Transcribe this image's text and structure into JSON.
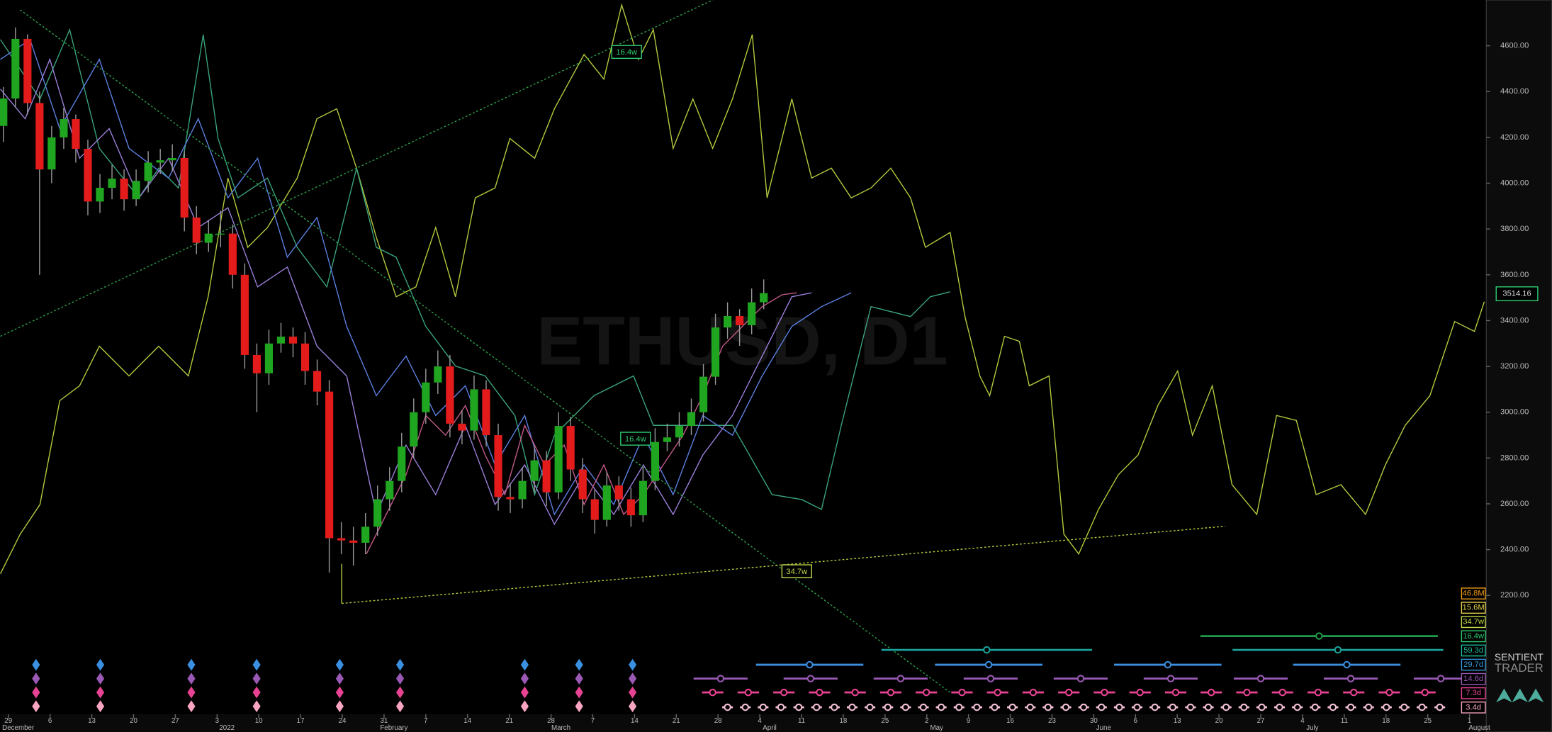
{
  "watermark": "ETHUSD, D1",
  "ylim": [
    1690,
    4800
  ],
  "yticks": [
    {
      "value": 2200,
      "label": "2200.00"
    },
    {
      "value": 2400,
      "label": "2400.00"
    },
    {
      "value": 2600,
      "label": "2600.00"
    },
    {
      "value": 2800,
      "label": "2800.00"
    },
    {
      "value": 3000,
      "label": "3000.00"
    },
    {
      "value": 3200,
      "label": "3200.00"
    },
    {
      "value": 3400,
      "label": "3400.00"
    },
    {
      "value": 3600,
      "label": "3600.00"
    },
    {
      "value": 3800,
      "label": "3800.00"
    },
    {
      "value": 4000,
      "label": "4000.00"
    },
    {
      "value": 4200,
      "label": "4200.00"
    },
    {
      "value": 4400,
      "label": "4400.00"
    },
    {
      "value": 4600,
      "label": "4600.00"
    }
  ],
  "last_price": 3514.16,
  "xticks": [
    {
      "day": "29",
      "month": "December"
    },
    {
      "day": "6"
    },
    {
      "day": "13"
    },
    {
      "day": "20"
    },
    {
      "day": "27"
    },
    {
      "day": "3",
      "month": "2022"
    },
    {
      "day": "10"
    },
    {
      "day": "17"
    },
    {
      "day": "24"
    },
    {
      "day": "31",
      "month": "February"
    },
    {
      "day": "7"
    },
    {
      "day": "14"
    },
    {
      "day": "21"
    },
    {
      "day": "28",
      "month": "March"
    },
    {
      "day": "7"
    },
    {
      "day": "14"
    },
    {
      "day": "21"
    },
    {
      "day": "28"
    },
    {
      "day": "4",
      "month": "April"
    },
    {
      "day": "11"
    },
    {
      "day": "18"
    },
    {
      "day": "25"
    },
    {
      "day": "2",
      "month": "May"
    },
    {
      "day": "9"
    },
    {
      "day": "16"
    },
    {
      "day": "23"
    },
    {
      "day": "30",
      "month": "June"
    },
    {
      "day": "6"
    },
    {
      "day": "13"
    },
    {
      "day": "20"
    },
    {
      "day": "27"
    },
    {
      "day": "4",
      "month": "July"
    },
    {
      "day": "11"
    },
    {
      "day": "18"
    },
    {
      "day": "25"
    },
    {
      "day": "1",
      "month": "August"
    }
  ],
  "annotations": [
    "16.4w",
    "16.4w",
    "34.7w"
  ],
  "cycle_labels": [
    {
      "label": "46.8M",
      "color": "#f39c12"
    },
    {
      "label": "15.6M",
      "color": "#e8d44d"
    },
    {
      "label": "34.7w",
      "color": "#c4d94a"
    },
    {
      "label": "16.4w",
      "color": "#2ecc71"
    },
    {
      "label": "59.3d",
      "color": "#1abc9c"
    },
    {
      "label": "29.7d",
      "color": "#3498db"
    },
    {
      "label": "14.6d",
      "color": "#9b59b6"
    },
    {
      "label": "7.3d",
      "color": "#e84393"
    },
    {
      "label": "3.4d",
      "color": "#f8a5c2"
    }
  ],
  "brand": [
    "SENTIENT",
    "TRADER"
  ],
  "up_color": "#1fa51f",
  "down_color": "#e41b1b",
  "candles": [
    [
      4250,
      4420,
      4180,
      4370
    ],
    [
      4370,
      4680,
      4330,
      4630
    ],
    [
      4630,
      4650,
      4300,
      4350
    ],
    [
      4350,
      4400,
      3600,
      4060
    ],
    [
      4060,
      4250,
      4000,
      4200
    ],
    [
      4200,
      4330,
      4150,
      4280
    ],
    [
      4280,
      4300,
      4090,
      4150
    ],
    [
      4150,
      4190,
      3860,
      3920
    ],
    [
      3920,
      4040,
      3870,
      3980
    ],
    [
      3980,
      4080,
      3930,
      4020
    ],
    [
      4020,
      4060,
      3880,
      3930
    ],
    [
      3930,
      4060,
      3900,
      4010
    ],
    [
      4010,
      4140,
      3960,
      4090
    ],
    [
      4090,
      4150,
      4040,
      4100
    ],
    [
      4100,
      4170,
      4050,
      4110
    ],
    [
      4110,
      4140,
      3790,
      3850
    ],
    [
      3850,
      3900,
      3690,
      3740
    ],
    [
      3740,
      3840,
      3700,
      3780
    ],
    [
      3780,
      3880,
      3720,
      3780
    ],
    [
      3780,
      3820,
      3540,
      3600
    ],
    [
      3600,
      3650,
      3190,
      3250
    ],
    [
      3250,
      3300,
      3000,
      3170
    ],
    [
      3170,
      3360,
      3120,
      3300
    ],
    [
      3300,
      3390,
      3260,
      3330
    ],
    [
      3330,
      3370,
      3240,
      3300
    ],
    [
      3300,
      3350,
      3120,
      3180
    ],
    [
      3180,
      3230,
      3030,
      3090
    ],
    [
      3090,
      3140,
      2300,
      2450
    ],
    [
      2450,
      2520,
      2380,
      2440
    ],
    [
      2440,
      2500,
      2330,
      2430
    ],
    [
      2430,
      2560,
      2380,
      2500
    ],
    [
      2500,
      2680,
      2460,
      2620
    ],
    [
      2620,
      2760,
      2570,
      2700
    ],
    [
      2700,
      2910,
      2650,
      2850
    ],
    [
      2850,
      3060,
      2800,
      3000
    ],
    [
      3000,
      3190,
      2950,
      3130
    ],
    [
      3130,
      3270,
      3080,
      3200
    ],
    [
      3200,
      3250,
      2890,
      2950
    ],
    [
      2950,
      3010,
      2860,
      2920
    ],
    [
      2920,
      3160,
      2880,
      3100
    ],
    [
      3100,
      3140,
      2850,
      2900
    ],
    [
      2900,
      2950,
      2570,
      2630
    ],
    [
      2630,
      2690,
      2560,
      2620
    ],
    [
      2620,
      2760,
      2580,
      2700
    ],
    [
      2700,
      2850,
      2650,
      2790
    ],
    [
      2790,
      2830,
      2590,
      2650
    ],
    [
      2650,
      3000,
      2620,
      2940
    ],
    [
      2940,
      2980,
      2700,
      2750
    ],
    [
      2750,
      2800,
      2560,
      2620
    ],
    [
      2620,
      2660,
      2470,
      2530
    ],
    [
      2530,
      2740,
      2500,
      2680
    ],
    [
      2680,
      2720,
      2570,
      2620
    ],
    [
      2620,
      2670,
      2500,
      2550
    ],
    [
      2550,
      2760,
      2520,
      2700
    ],
    [
      2700,
      2930,
      2660,
      2870
    ],
    [
      2870,
      2950,
      2830,
      2890
    ],
    [
      2890,
      3000,
      2850,
      2940
    ],
    [
      2940,
      3060,
      2900,
      3000
    ],
    [
      3000,
      3210,
      2960,
      3155
    ],
    [
      3155,
      3430,
      3120,
      3370
    ],
    [
      3370,
      3480,
      3320,
      3420
    ],
    [
      3420,
      3450,
      3290,
      3380
    ],
    [
      3380,
      3540,
      3340,
      3480
    ],
    [
      3480,
      3580,
      3450,
      3520
    ]
  ]
}
